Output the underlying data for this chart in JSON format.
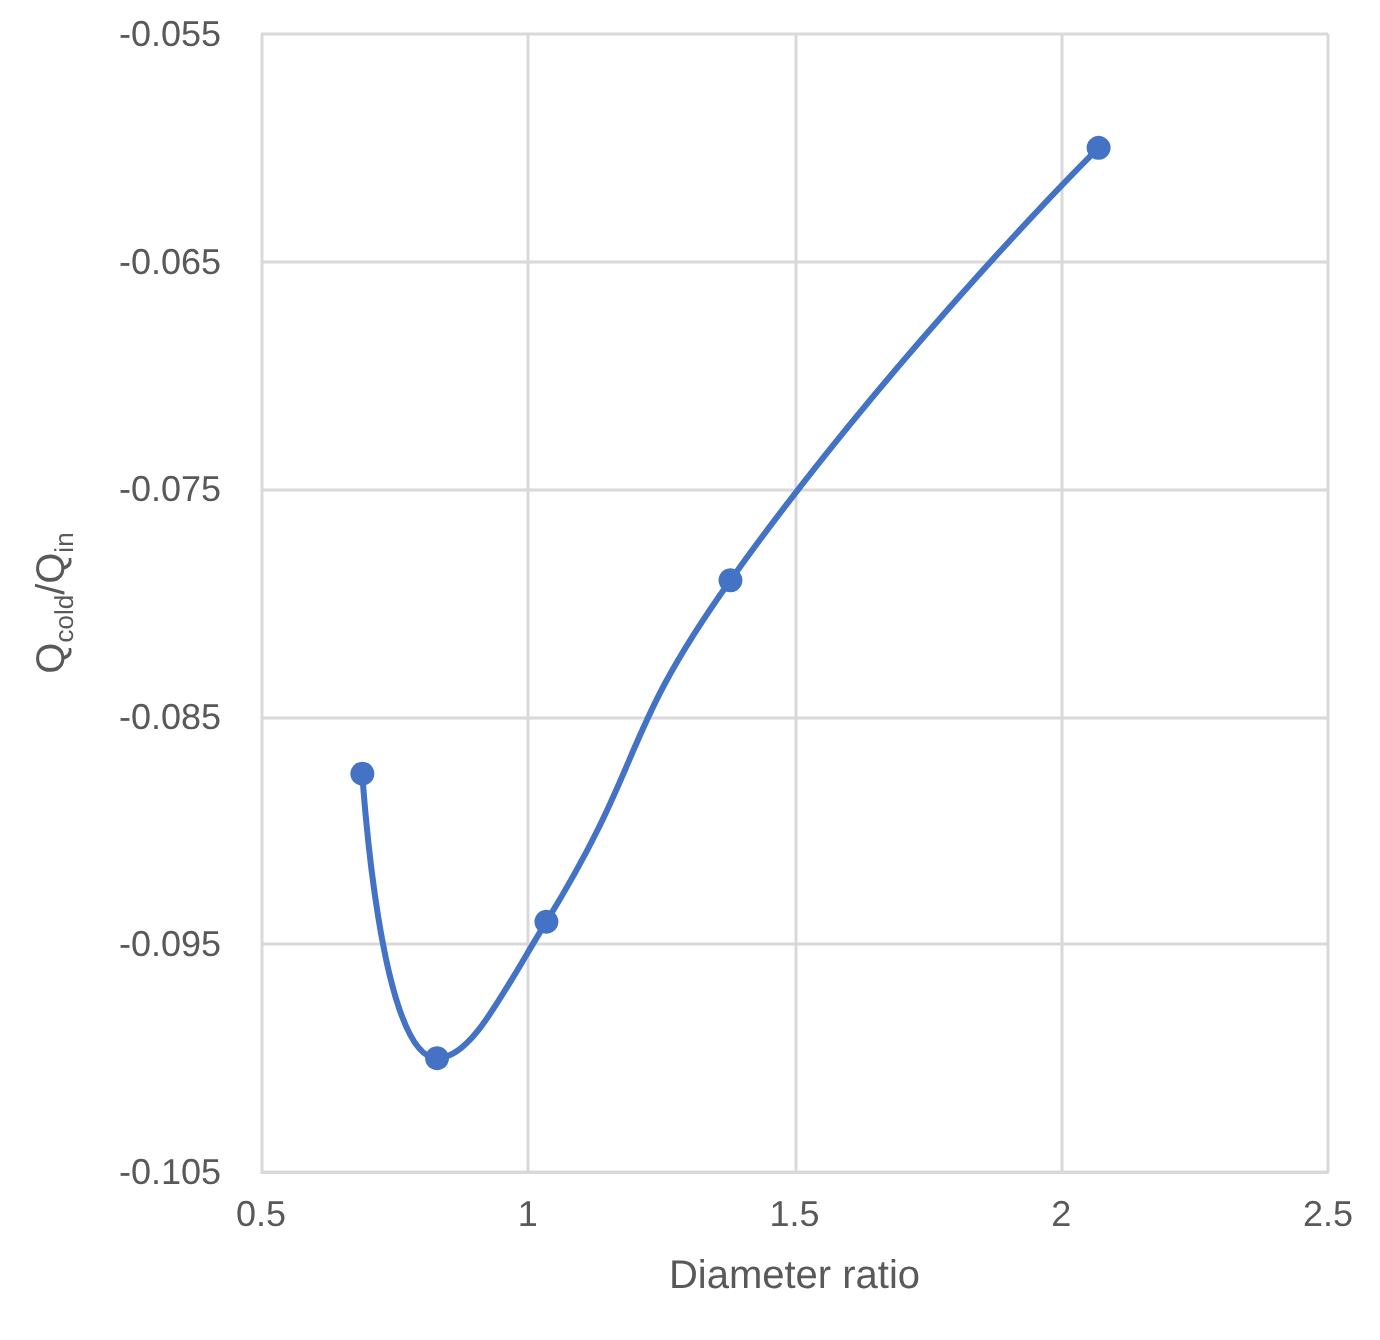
{
  "chart_data": {
    "type": "line",
    "xlabel": "Diameter ratio",
    "ylabel": "Q$_{cold}$/Q$_{in}$",
    "x": [
      0.69,
      0.83,
      1.035,
      1.38,
      2.07
    ],
    "series": [
      {
        "color": "#4472c4",
        "values": [
          -0.0875,
          -0.1,
          -0.094,
          -0.079,
          -0.06
        ]
      }
    ],
    "xlim": [
      0.5,
      2.5
    ],
    "xticks": [
      0.5,
      1,
      1.5,
      2,
      2.5
    ],
    "ylim": [
      -0.105,
      -0.055
    ],
    "yticks": [
      -0.105,
      -0.095,
      -0.085,
      -0.075,
      -0.065,
      -0.055
    ],
    "grid": true,
    "marker": "circle",
    "line_style": "solid"
  }
}
